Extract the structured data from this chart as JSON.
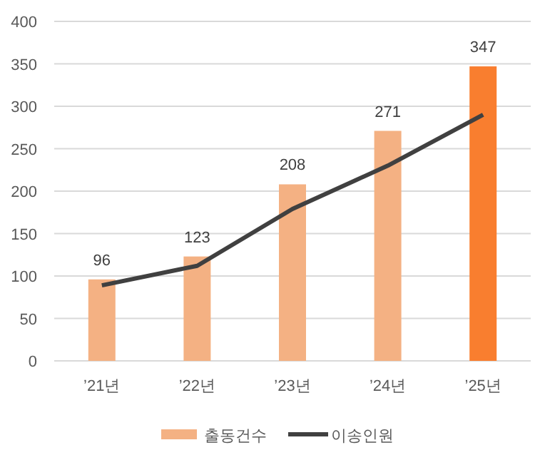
{
  "chart_data": {
    "type": "bar",
    "categories": [
      "’21년",
      "’22년",
      "’23년",
      "’24년",
      "’25년"
    ],
    "series": [
      {
        "name": "출동건수",
        "color": "#f4b183",
        "colors": [
          "#f4b183",
          "#f4b183",
          "#f4b183",
          "#f4b183",
          "#f97e2f"
        ],
        "values": [
          96,
          123,
          208,
          271,
          347
        ],
        "value_labels": [
          "96",
          "123",
          "208",
          "271",
          "347"
        ]
      },
      {
        "name": "이송인원",
        "type": "line",
        "color": "#404040",
        "values": [
          89,
          112,
          179,
          230,
          290
        ],
        "marker": "none"
      }
    ],
    "ylim": [
      0,
      400
    ],
    "yticks": [
      0,
      50,
      100,
      150,
      200,
      250,
      300,
      350,
      400
    ],
    "grid": "y",
    "legend": "bottom"
  }
}
